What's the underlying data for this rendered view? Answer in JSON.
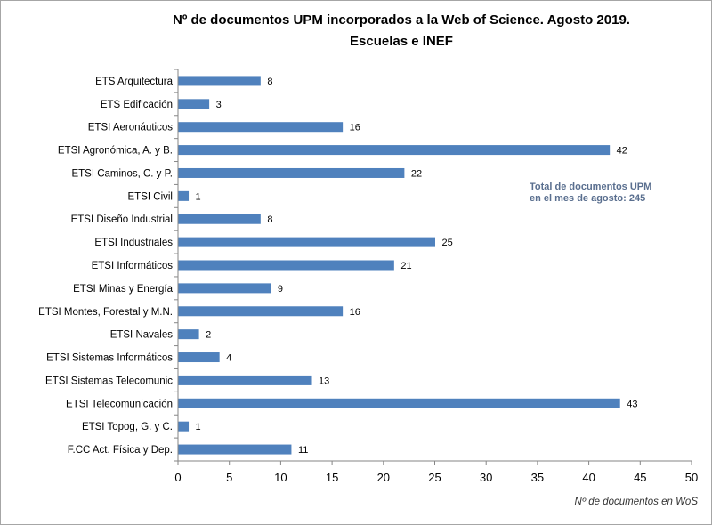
{
  "chart_data": {
    "type": "bar",
    "orientation": "horizontal",
    "title": "Nº de documentos UPM incorporados a la Web of Science. Agosto 2019.",
    "subtitle": "Escuelas e INEF",
    "xlabel": "Nº de documentos en WoS",
    "ylabel": "",
    "xlim": [
      0,
      50
    ],
    "xticks": [
      0,
      5,
      10,
      15,
      20,
      25,
      30,
      35,
      40,
      45,
      50
    ],
    "grid": false,
    "bar_color": "#4f81bd",
    "categories": [
      "ETS Arquitectura",
      "ETS Edificación",
      "ETSI Aeronáuticos",
      "ETSI Agronómica, A. y B.",
      "ETSI Caminos, C. y P.",
      "ETSI Civil",
      "ETSI Diseño Industrial",
      "ETSI Industriales",
      "ETSI Informáticos",
      "ETSI Minas y Energía",
      "ETSI Montes, Forestal y M.N.",
      "ETSI Navales",
      "ETSI Sistemas Informáticos",
      "ETSI Sistemas Telecomunic",
      "ETSI Telecomunicación",
      "ETSI Topog, G. y C.",
      "F.CC Act. Física y Dep."
    ],
    "values": [
      8,
      3,
      16,
      42,
      22,
      1,
      8,
      25,
      21,
      9,
      16,
      2,
      4,
      13,
      43,
      1,
      11
    ],
    "annotation": [
      "Total de documentos  UPM",
      "en el mes de agosto:  245"
    ]
  }
}
